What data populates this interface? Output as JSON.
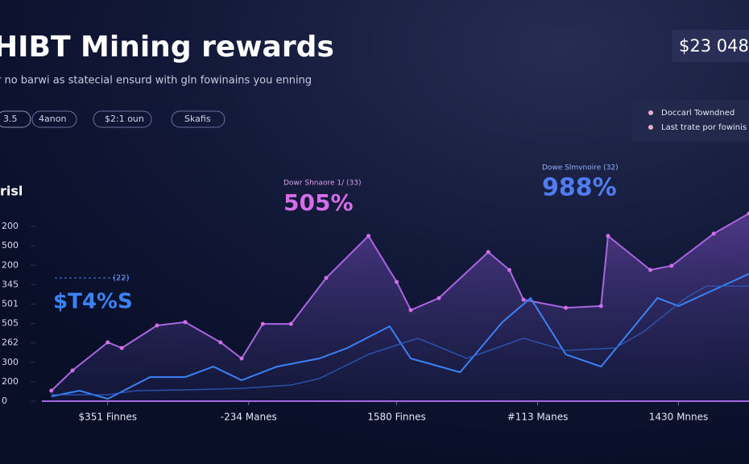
{
  "chart_data": {
    "type": "line",
    "title": "HIBT Mining rewards",
    "subtitle": "r no barwi as statecial ensurd with gln fowinains you enning",
    "balance": "$23 048",
    "filters": [
      "3.5",
      "4anon",
      "$2:1 oun",
      "Skafis"
    ],
    "ylabel": "risl",
    "annotations": [
      {
        "label": "(22)",
        "text": "$T4%S"
      },
      {
        "label": "Dowr Shnaore 1/ (33)",
        "text": "505%"
      },
      {
        "label": "Dowe Slmvnoire (32)",
        "text": "988%"
      }
    ],
    "xlim": [
      0,
      100
    ],
    "xticks": [
      {
        "value": 9,
        "label": "$351 Finnes"
      },
      {
        "value": 29,
        "label": "-234 Manes"
      },
      {
        "value": 50,
        "label": "1580 Finnes"
      },
      {
        "value": 70,
        "label": "#113 Manes"
      },
      {
        "value": 90,
        "label": "1430 Mnnes"
      }
    ],
    "ylim": [
      0,
      1000
    ],
    "yticks": [
      0,
      {
        "value": 100,
        "label": "200"
      },
      {
        "value": 200,
        "label": "300"
      },
      {
        "value": 300,
        "label": "262"
      },
      {
        "value": 400,
        "label": "505"
      },
      {
        "value": 500,
        "label": "501"
      },
      {
        "value": 600,
        "label": "345"
      },
      {
        "value": 700,
        "label": "200"
      },
      {
        "value": 800,
        "label": "500"
      },
      {
        "value": 900,
        "label": "200"
      }
    ],
    "series": [
      {
        "name": "Doccarl Towndned",
        "color": "#a866e0",
        "x": [
          1,
          4,
          9,
          11,
          16,
          20,
          25,
          28,
          31,
          35,
          40,
          46,
          50,
          52,
          56,
          63,
          66,
          68,
          74,
          79,
          80,
          86,
          89,
          95,
          100
        ],
        "values": [
          54,
          158,
          303,
          274,
          390,
          407,
          303,
          220,
          398,
          398,
          635,
          851,
          614,
          469,
          531,
          768,
          676,
          523,
          481,
          490,
          851,
          676,
          697,
          863,
          967
        ]
      },
      {
        "name": "Last trate por fowinis",
        "color": "#3b82f6",
        "x": [
          1,
          5,
          9,
          15,
          20,
          24,
          28,
          33,
          39,
          43,
          49,
          52,
          59,
          65,
          69,
          74,
          79,
          87,
          90,
          100
        ],
        "values": [
          25,
          54,
          12,
          124,
          124,
          178,
          108,
          178,
          220,
          274,
          386,
          220,
          149,
          407,
          531,
          241,
          178,
          531,
          490,
          656
        ]
      },
      {
        "color": "#2f5fc4",
        "x": [
          1,
          9,
          13,
          20,
          28,
          35,
          39,
          46,
          53,
          60,
          68,
          74,
          81,
          85,
          91,
          94,
          100
        ],
        "values": [
          33,
          33,
          54,
          58,
          66,
          83,
          116,
          241,
          324,
          220,
          324,
          261,
          274,
          357,
          531,
          593,
          593
        ]
      }
    ]
  }
}
